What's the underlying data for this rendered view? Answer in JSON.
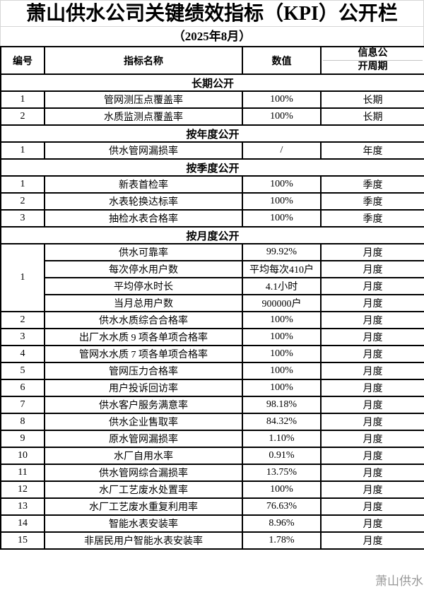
{
  "page": {
    "title": "萧山供水公司关键绩效指标（KPI）公开栏",
    "subtitle": "（2025年8月）",
    "watermark": "萧山供水"
  },
  "colors": {
    "border": "#000000",
    "title_border": "#d6d6d6",
    "watermark": "#8f8f8f",
    "background": "#ffffff",
    "text": "#000000"
  },
  "table": {
    "headers": {
      "no": "编号",
      "name": "指标名称",
      "value": "数值",
      "period": "信息公开周期",
      "period_line1": "信息公",
      "period_line2": "开周期"
    },
    "sections": [
      {
        "title": "长期公开",
        "rows": [
          {
            "no": "1",
            "name": "管网测压点覆盖率",
            "value": "100%",
            "period": "长期"
          },
          {
            "no": "2",
            "name": "水质监测点覆盖率",
            "value": "100%",
            "period": "长期"
          }
        ]
      },
      {
        "title": "按年度公开",
        "rows": [
          {
            "no": "1",
            "name": "供水管网漏损率",
            "value": "/",
            "period": "年度"
          }
        ]
      },
      {
        "title": "按季度公开",
        "rows": [
          {
            "no": "1",
            "name": "新表首检率",
            "value": "100%",
            "period": "季度"
          },
          {
            "no": "2",
            "name": "水表轮换达标率",
            "value": "100%",
            "period": "季度"
          },
          {
            "no": "3",
            "name": "抽检水表合格率",
            "value": "100%",
            "period": "季度"
          }
        ]
      },
      {
        "title": "按月度公开",
        "rows": [
          {
            "no": "1",
            "no_rowspan": 4,
            "name": "供水可靠率",
            "value": "99.92%",
            "period": "月度"
          },
          {
            "name": "每次停水用户数",
            "value": "平均每次410户",
            "period": "月度"
          },
          {
            "name": "平均停水时长",
            "value": "4.1小时",
            "period": "月度"
          },
          {
            "name": "当月总用户数",
            "value": "900000户",
            "period": "月度"
          },
          {
            "no": "2",
            "name": "供水水质综合合格率",
            "value": "100%",
            "period": "月度"
          },
          {
            "no": "3",
            "name": "出厂水水质 9 项各单项合格率",
            "value": "100%",
            "period": "月度"
          },
          {
            "no": "4",
            "name": "管网水水质 7 项各单项合格率",
            "value": "100%",
            "period": "月度"
          },
          {
            "no": "5",
            "name": "管网压力合格率",
            "value": "100%",
            "period": "月度"
          },
          {
            "no": "6",
            "name": "用户投诉回访率",
            "value": "100%",
            "period": "月度"
          },
          {
            "no": "7",
            "name": "供水客户服务满意率",
            "value": "98.18%",
            "period": "月度"
          },
          {
            "no": "8",
            "name": "供水企业售取率",
            "value": "84.32%",
            "period": "月度"
          },
          {
            "no": "9",
            "name": "原水管网漏损率",
            "value": "1.10%",
            "period": "月度"
          },
          {
            "no": "10",
            "name": "水厂自用水率",
            "value": "0.91%",
            "period": "月度"
          },
          {
            "no": "11",
            "name": "供水管网综合漏损率",
            "value": "13.75%",
            "period": "月度"
          },
          {
            "no": "12",
            "name": "水厂工艺废水处置率",
            "value": "100%",
            "period": "月度"
          },
          {
            "no": "13",
            "name": "水厂工艺废水重复利用率",
            "value": "76.63%",
            "period": "月度"
          },
          {
            "no": "14",
            "name": "智能水表安装率",
            "value": "8.96%",
            "period": "月度"
          },
          {
            "no": "15",
            "name": "非居民用户智能水表安装率",
            "value": "1.78%",
            "period": "月度"
          }
        ]
      }
    ]
  }
}
